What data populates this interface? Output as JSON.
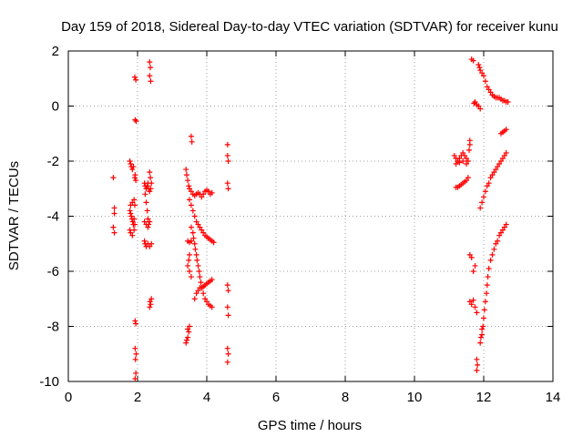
{
  "chart_data": {
    "type": "scatter",
    "title": "Day 159 of 2018, Sidereal Day-to-day VTEC variation (SDTVAR) for receiver kunu",
    "xlabel": "GPS time / hours",
    "ylabel": "SDTVAR / TECUs",
    "xlim": [
      0,
      14
    ],
    "ylim": [
      -10,
      2
    ],
    "xticks": [
      0,
      2,
      4,
      6,
      8,
      10,
      12,
      14
    ],
    "yticks": [
      2,
      0,
      -2,
      -4,
      -6,
      -8,
      -10
    ],
    "xtick_labels": [
      "0",
      "2",
      "4",
      "6",
      "8",
      "10",
      "12",
      "14"
    ],
    "ytick_labels": [
      "2",
      "0",
      "-2",
      "-4",
      "-6",
      "-8",
      "-10"
    ],
    "grid": true,
    "marker": "+",
    "color": "#ff0000",
    "series": [
      {
        "name": "SDTVAR",
        "points": [
          [
            1.3,
            -2.6
          ],
          [
            1.33,
            -3.7
          ],
          [
            1.33,
            -3.9
          ],
          [
            1.3,
            -4.4
          ],
          [
            1.33,
            -4.6
          ],
          [
            1.78,
            -2.0
          ],
          [
            1.8,
            -2.1
          ],
          [
            1.82,
            -2.2
          ],
          [
            1.85,
            -2.3
          ],
          [
            1.88,
            -2.2
          ],
          [
            1.78,
            -3.8
          ],
          [
            1.8,
            -3.9
          ],
          [
            1.82,
            -4.0
          ],
          [
            1.84,
            -4.1
          ],
          [
            1.86,
            -4.2
          ],
          [
            1.88,
            -4.3
          ],
          [
            1.9,
            -4.1
          ],
          [
            1.8,
            -3.6
          ],
          [
            1.85,
            -3.5
          ],
          [
            1.9,
            -3.4
          ],
          [
            1.92,
            -3.6
          ],
          [
            1.78,
            -4.5
          ],
          [
            1.8,
            -4.6
          ],
          [
            1.85,
            -4.7
          ],
          [
            1.9,
            -4.5
          ],
          [
            1.92,
            -4.3
          ],
          [
            1.92,
            -2.6
          ],
          [
            1.93,
            -2.5
          ],
          [
            1.95,
            -2.7
          ],
          [
            1.92,
            1.05
          ],
          [
            1.95,
            0.95
          ],
          [
            1.93,
            -0.5
          ],
          [
            1.96,
            -0.55
          ],
          [
            1.93,
            -7.8
          ],
          [
            1.95,
            -7.9
          ],
          [
            1.93,
            -8.8
          ],
          [
            1.96,
            -9.0
          ],
          [
            1.94,
            -9.2
          ],
          [
            1.95,
            -9.7
          ],
          [
            1.93,
            -9.9
          ],
          [
            2.2,
            -2.8
          ],
          [
            2.22,
            -2.9
          ],
          [
            2.25,
            -3.0
          ],
          [
            2.28,
            -2.9
          ],
          [
            2.3,
            -2.8
          ],
          [
            2.32,
            -3.0
          ],
          [
            2.35,
            -3.1
          ],
          [
            2.22,
            -3.2
          ],
          [
            2.25,
            -3.5
          ],
          [
            2.28,
            -3.8
          ],
          [
            2.3,
            -4.1
          ],
          [
            2.32,
            -4.3
          ],
          [
            2.2,
            -4.2
          ],
          [
            2.25,
            -4.3
          ],
          [
            2.3,
            -4.4
          ],
          [
            2.35,
            -4.2
          ],
          [
            2.2,
            -4.9
          ],
          [
            2.22,
            -5.0
          ],
          [
            2.25,
            -5.1
          ],
          [
            2.3,
            -5.0
          ],
          [
            2.35,
            -5.1
          ],
          [
            2.4,
            -5.0
          ],
          [
            2.35,
            -2.4
          ],
          [
            2.37,
            -2.6
          ],
          [
            2.4,
            -2.8
          ],
          [
            2.38,
            -3.0
          ],
          [
            2.35,
            1.6
          ],
          [
            2.37,
            1.4
          ],
          [
            2.35,
            1.1
          ],
          [
            2.38,
            0.9
          ],
          [
            2.36,
            -7.1
          ],
          [
            2.38,
            -7.2
          ],
          [
            2.35,
            -7.3
          ],
          [
            2.4,
            -7.0
          ],
          [
            3.4,
            -2.3
          ],
          [
            3.42,
            -2.5
          ],
          [
            3.45,
            -2.7
          ],
          [
            3.48,
            -2.9
          ],
          [
            3.5,
            -3.0
          ],
          [
            3.55,
            -3.1
          ],
          [
            3.6,
            -3.2
          ],
          [
            3.65,
            -3.25
          ],
          [
            3.7,
            -3.2
          ],
          [
            3.75,
            -3.15
          ],
          [
            3.8,
            -3.2
          ],
          [
            3.85,
            -3.3
          ],
          [
            3.9,
            -3.2
          ],
          [
            3.95,
            -3.1
          ],
          [
            4.0,
            -3.05
          ],
          [
            4.05,
            -3.1
          ],
          [
            4.1,
            -3.2
          ],
          [
            4.15,
            -3.15
          ],
          [
            3.5,
            -3.4
          ],
          [
            3.55,
            -3.6
          ],
          [
            3.6,
            -3.8
          ],
          [
            3.65,
            -4.0
          ],
          [
            3.7,
            -4.2
          ],
          [
            3.75,
            -4.3
          ],
          [
            3.8,
            -4.4
          ],
          [
            3.85,
            -4.5
          ],
          [
            3.9,
            -4.6
          ],
          [
            3.95,
            -4.7
          ],
          [
            4.0,
            -4.75
          ],
          [
            4.05,
            -4.8
          ],
          [
            4.1,
            -4.85
          ],
          [
            4.15,
            -4.9
          ],
          [
            4.2,
            -4.95
          ],
          [
            3.55,
            -4.4
          ],
          [
            3.6,
            -4.6
          ],
          [
            3.62,
            -4.8
          ],
          [
            3.65,
            -5.0
          ],
          [
            3.67,
            -5.2
          ],
          [
            3.7,
            -5.4
          ],
          [
            3.72,
            -5.6
          ],
          [
            3.75,
            -5.8
          ],
          [
            3.78,
            -6.0
          ],
          [
            3.8,
            -6.2
          ],
          [
            3.83,
            -6.4
          ],
          [
            3.86,
            -6.6
          ],
          [
            3.9,
            -6.8
          ],
          [
            3.95,
            -7.0
          ],
          [
            4.0,
            -7.1
          ],
          [
            4.05,
            -7.2
          ],
          [
            4.1,
            -7.25
          ],
          [
            4.15,
            -7.3
          ],
          [
            3.65,
            -7.0
          ],
          [
            3.7,
            -6.8
          ],
          [
            3.75,
            -6.7
          ],
          [
            3.8,
            -6.6
          ],
          [
            3.85,
            -6.6
          ],
          [
            3.9,
            -6.55
          ],
          [
            3.95,
            -6.5
          ],
          [
            4.0,
            -6.45
          ],
          [
            4.05,
            -6.4
          ],
          [
            4.1,
            -6.35
          ],
          [
            4.15,
            -6.3
          ],
          [
            3.45,
            -4.9
          ],
          [
            3.5,
            -4.95
          ],
          [
            3.55,
            -4.9
          ],
          [
            3.5,
            -5.4
          ],
          [
            3.48,
            -5.6
          ],
          [
            3.45,
            -5.8
          ],
          [
            3.5,
            -6.0
          ],
          [
            3.55,
            -6.2
          ],
          [
            3.45,
            -8.1
          ],
          [
            3.48,
            -8.2
          ],
          [
            3.45,
            -8.4
          ],
          [
            3.42,
            -8.5
          ],
          [
            3.4,
            -8.6
          ],
          [
            3.5,
            -8.0
          ],
          [
            3.55,
            -1.1
          ],
          [
            3.57,
            -1.3
          ],
          [
            4.6,
            -1.4
          ],
          [
            4.6,
            -1.8
          ],
          [
            4.62,
            -2.0
          ],
          [
            4.6,
            -2.8
          ],
          [
            4.62,
            -3.0
          ],
          [
            4.6,
            -6.5
          ],
          [
            4.62,
            -6.7
          ],
          [
            4.6,
            -7.3
          ],
          [
            4.62,
            -7.6
          ],
          [
            4.6,
            -8.8
          ],
          [
            4.62,
            -9.0
          ],
          [
            4.6,
            -9.3
          ],
          [
            11.15,
            -1.8
          ],
          [
            11.2,
            -1.9
          ],
          [
            11.25,
            -2.0
          ],
          [
            11.3,
            -1.9
          ],
          [
            11.35,
            -1.8
          ],
          [
            11.4,
            -1.7
          ],
          [
            11.45,
            -1.8
          ],
          [
            11.5,
            -1.9
          ],
          [
            11.55,
            -2.0
          ],
          [
            11.58,
            -1.6
          ],
          [
            11.6,
            -1.4
          ],
          [
            11.2,
            -2.1
          ],
          [
            11.3,
            -2.05
          ],
          [
            11.4,
            -2.0
          ],
          [
            11.5,
            -2.1
          ],
          [
            11.2,
            -2.95
          ],
          [
            11.25,
            -2.95
          ],
          [
            11.3,
            -2.9
          ],
          [
            11.35,
            -2.85
          ],
          [
            11.4,
            -2.8
          ],
          [
            11.45,
            -2.75
          ],
          [
            11.5,
            -2.7
          ],
          [
            11.55,
            -2.6
          ],
          [
            11.6,
            -1.25
          ],
          [
            11.65,
            1.7
          ],
          [
            11.7,
            1.65
          ],
          [
            11.72,
            0.1
          ],
          [
            11.75,
            0.15
          ],
          [
            11.8,
            0.05
          ],
          [
            11.85,
            0.0
          ],
          [
            11.9,
            -0.1
          ],
          [
            11.85,
            1.5
          ],
          [
            11.88,
            1.4
          ],
          [
            11.9,
            1.3
          ],
          [
            11.95,
            1.2
          ],
          [
            12.0,
            1.1
          ],
          [
            12.05,
            0.9
          ],
          [
            12.1,
            0.7
          ],
          [
            12.15,
            0.6
          ],
          [
            12.2,
            0.5
          ],
          [
            12.25,
            0.4
          ],
          [
            12.3,
            0.35
          ],
          [
            12.35,
            0.3
          ],
          [
            12.4,
            0.3
          ],
          [
            12.45,
            0.3
          ],
          [
            12.5,
            0.25
          ],
          [
            12.55,
            0.2
          ],
          [
            12.6,
            0.2
          ],
          [
            12.65,
            0.15
          ],
          [
            12.7,
            0.15
          ],
          [
            12.5,
            -1.0
          ],
          [
            12.55,
            -0.95
          ],
          [
            12.6,
            -0.9
          ],
          [
            12.65,
            -0.85
          ],
          [
            11.9,
            -3.7
          ],
          [
            11.95,
            -3.5
          ],
          [
            12.0,
            -3.3
          ],
          [
            12.05,
            -3.1
          ],
          [
            12.1,
            -2.9
          ],
          [
            12.15,
            -2.8
          ],
          [
            12.2,
            -2.6
          ],
          [
            12.25,
            -2.5
          ],
          [
            12.3,
            -2.4
          ],
          [
            12.35,
            -2.3
          ],
          [
            12.4,
            -2.2
          ],
          [
            12.45,
            -2.1
          ],
          [
            12.5,
            -2.0
          ],
          [
            12.55,
            -1.9
          ],
          [
            12.6,
            -1.8
          ],
          [
            12.65,
            -1.7
          ],
          [
            11.95,
            -8.3
          ],
          [
            11.98,
            -8.0
          ],
          [
            12.0,
            -7.7
          ],
          [
            12.02,
            -7.4
          ],
          [
            12.05,
            -7.1
          ],
          [
            12.08,
            -6.8
          ],
          [
            12.1,
            -6.5
          ],
          [
            12.12,
            -6.2
          ],
          [
            12.15,
            -5.9
          ],
          [
            12.2,
            -5.6
          ],
          [
            12.25,
            -5.4
          ],
          [
            12.3,
            -5.2
          ],
          [
            12.35,
            -5.0
          ],
          [
            12.4,
            -4.9
          ],
          [
            12.45,
            -4.7
          ],
          [
            12.5,
            -4.6
          ],
          [
            12.55,
            -4.5
          ],
          [
            12.6,
            -4.4
          ],
          [
            12.65,
            -4.3
          ],
          [
            11.9,
            -8.6
          ],
          [
            11.92,
            -8.4
          ],
          [
            11.95,
            -8.1
          ],
          [
            11.6,
            -5.4
          ],
          [
            11.65,
            -5.5
          ],
          [
            11.7,
            -6.0
          ],
          [
            11.75,
            -5.8
          ],
          [
            11.6,
            -7.1
          ],
          [
            11.65,
            -7.2
          ],
          [
            11.7,
            -7.05
          ],
          [
            11.75,
            -7.3
          ],
          [
            11.8,
            -7.5
          ],
          [
            11.8,
            -9.2
          ],
          [
            11.82,
            -9.4
          ],
          [
            11.8,
            -9.6
          ]
        ]
      }
    ]
  }
}
